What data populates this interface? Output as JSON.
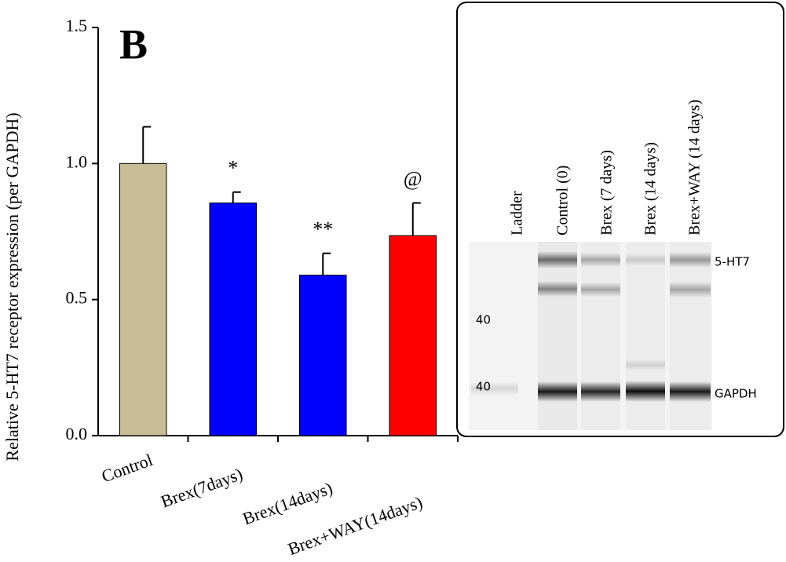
{
  "chart_data": {
    "type": "bar",
    "panel_label": "B",
    "ylabel": "Relative 5-HT7 receptor expression (per GAPDH)",
    "categories": [
      "Control",
      "Brex(7days)",
      "Brex(14days)",
      "Brex+WAY(14days)"
    ],
    "values": [
      1.0,
      0.855,
      0.59,
      0.735
    ],
    "errors": [
      0.135,
      0.04,
      0.08,
      0.12
    ],
    "colors": [
      "#c8bc96",
      "#0000ff",
      "#0000ff",
      "#ff0000"
    ],
    "significance": [
      null,
      "*",
      "**",
      "@"
    ],
    "ylim": [
      0,
      1.5
    ],
    "yticks": [
      {
        "value": 0,
        "label": "0.0"
      },
      {
        "value": 0.5,
        "label": "0.5"
      },
      {
        "value": 1,
        "label": "1.0"
      },
      {
        "value": 1.5,
        "label": "1.5"
      }
    ]
  },
  "blot": {
    "lanes": [
      "Ladder",
      "Control (0)",
      "Brex (7 days)",
      "Brex (14 days)",
      "Brex+WAY (14 days)"
    ],
    "markers": [
      "40",
      "40"
    ],
    "bands": [
      "5-HT7",
      "GAPDH"
    ]
  }
}
